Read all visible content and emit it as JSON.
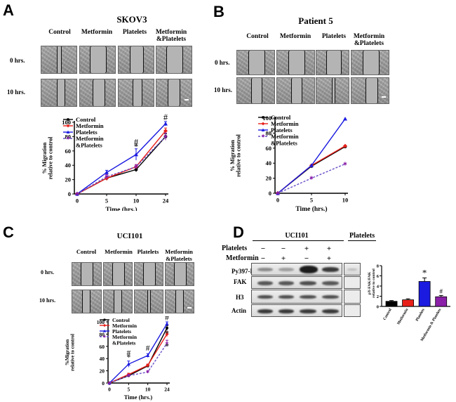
{
  "panels": {
    "A": {
      "letter": "A",
      "title": "SKOV3",
      "columns": [
        "Control",
        "Metformin",
        "Platelets",
        "Metformin\n&Platelets"
      ],
      "rows": [
        "0 hrs.",
        "10 hrs."
      ]
    },
    "B": {
      "letter": "B",
      "title": "Patient 5",
      "columns": [
        "Control",
        "Metformin",
        "Platelets",
        "Metformin\n&Platelets"
      ],
      "rows": [
        "0 hrs.",
        "10 hrs."
      ]
    },
    "C": {
      "letter": "C",
      "title": "UCI101",
      "columns": [
        "Control",
        "Metformin",
        "Platelets",
        "Metformin\n&Platelets"
      ],
      "rows": [
        "0 hrs.",
        "10 hrs."
      ]
    },
    "D": {
      "letter": "D",
      "blot_title": "UCI101",
      "platelets_lane_label": "Platelets",
      "treatment_rows": [
        {
          "label": "Platelets",
          "signs": [
            "−",
            "−",
            "+",
            "+"
          ]
        },
        {
          "label": "Metformin",
          "signs": [
            "−",
            "+",
            "−",
            "+"
          ]
        }
      ],
      "band_labels": [
        "Py397-FAK",
        "FAK",
        "H3",
        "Actin"
      ]
    }
  },
  "colors": {
    "control": "#000000",
    "metformin": "#e8201a",
    "platelets": "#1a1ae0",
    "metformin_platelets": "#8a1fa8",
    "combo_line": "#6a4fc8"
  },
  "chart_data": [
    {
      "id": "A",
      "type": "line",
      "x": [
        0,
        5,
        10,
        24
      ],
      "xtick_labels": [
        "0",
        "5",
        "10",
        "24"
      ],
      "xlabel": "Time (hrs.)",
      "ylabel": "% Migration\nrelative to control",
      "ylim": [
        0,
        100
      ],
      "yticks": [
        0,
        20,
        40,
        60,
        80,
        100
      ],
      "legend": "top-left",
      "series": [
        {
          "name": "Control",
          "values": [
            0,
            22,
            34,
            80
          ],
          "err": [
            0,
            3,
            3,
            4
          ]
        },
        {
          "name": "Metformin",
          "values": [
            0,
            22,
            38,
            88
          ],
          "err": [
            0,
            3,
            3,
            4
          ]
        },
        {
          "name": "Platelets",
          "values": [
            0,
            30,
            55,
            98
          ],
          "err": [
            0,
            3,
            8,
            3
          ]
        },
        {
          "name": "Metformin\n&Platelets",
          "values": [
            0,
            24,
            38,
            80
          ],
          "err": [
            0,
            3,
            3,
            5
          ]
        }
      ],
      "annotations": [
        {
          "text": "#",
          "x": 10,
          "y": 68
        },
        {
          "text": "*",
          "x": 10,
          "y": 62
        },
        {
          "text": "#",
          "x": 24,
          "y": 103
        }
      ]
    },
    {
      "id": "B",
      "type": "line",
      "x": [
        0,
        5,
        10
      ],
      "xtick_labels": [
        "0",
        "5",
        "10"
      ],
      "xlabel": "Time (hrs.)",
      "ylabel": "% Migration\nrelative to control",
      "ylim": [
        0,
        100
      ],
      "yticks": [
        0,
        20,
        40,
        60,
        80,
        100
      ],
      "legend": "top-left",
      "series": [
        {
          "name": "Control",
          "values": [
            0,
            36,
            62
          ]
        },
        {
          "name": "Metformin",
          "values": [
            0,
            37,
            63
          ]
        },
        {
          "name": "Platelets",
          "values": [
            0,
            37,
            99
          ]
        },
        {
          "name": "Metformin\n&Platelets",
          "values": [
            0,
            20,
            39
          ]
        }
      ]
    },
    {
      "id": "C",
      "type": "line",
      "x": [
        0,
        5,
        10,
        24
      ],
      "xtick_labels": [
        "0",
        "5",
        "10",
        "24"
      ],
      "xlabel": "Time (hrs.)",
      "ylabel": "%Migration\nrelative to control",
      "ylim": [
        0,
        100
      ],
      "yticks": [
        0,
        20,
        40,
        60,
        80,
        100
      ],
      "legend": "top-left",
      "series": [
        {
          "name": "Control",
          "values": [
            0,
            12,
            28,
            90
          ],
          "err": [
            0,
            2,
            2,
            4
          ]
        },
        {
          "name": "Metformin",
          "values": [
            0,
            14,
            29,
            80
          ],
          "err": [
            0,
            2,
            2,
            4
          ]
        },
        {
          "name": "Platelets",
          "values": [
            0,
            31,
            45,
            97
          ],
          "err": [
            0,
            5,
            3,
            3
          ]
        },
        {
          "name": "Metformin\n&Platelets",
          "values": [
            0,
            12,
            18,
            65
          ],
          "err": [
            0,
            2,
            2,
            5
          ]
        }
      ],
      "annotations": [
        {
          "text": "#",
          "x": 5,
          "y": 45
        },
        {
          "text": "*",
          "x": 5,
          "y": 38
        },
        {
          "text": "#",
          "x": 10,
          "y": 53
        },
        {
          "text": "#",
          "x": 24,
          "y": 103
        },
        {
          "text": "*",
          "x": 24,
          "y": 77
        },
        {
          "text": "*",
          "x": 24,
          "y": 56
        }
      ]
    },
    {
      "id": "D",
      "type": "bar",
      "categories": [
        "Control",
        "Metformin",
        "Platelets",
        "Metformin & Platelets"
      ],
      "values": [
        1,
        1.3,
        4.9,
        1.9
      ],
      "err": [
        0.15,
        0.2,
        0.7,
        0.25
      ],
      "ylabel": "pY-FAK/FAK\nrelative to control",
      "ylim": [
        0,
        8
      ],
      "yticks": [
        0,
        2,
        4,
        6,
        8
      ],
      "annotations": [
        {
          "text": "*",
          "category": "Platelets"
        },
        {
          "text": "#",
          "category": "Metformin & Platelets"
        }
      ]
    }
  ]
}
